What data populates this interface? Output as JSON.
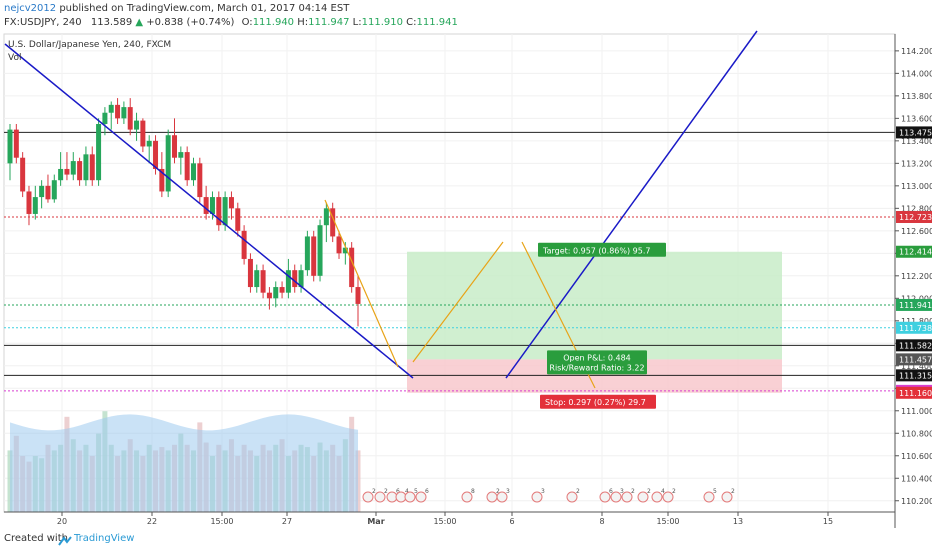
{
  "header": {
    "author": "nejcv2012",
    "published": "published on TradingView.com, March 01, 2017 04:14 EST",
    "symbol": "FX:USDJPY, 240",
    "last": "113.589",
    "change": "+0.838 (+0.74%)",
    "open_label": "O:",
    "open": "111.940",
    "high_label": "H:",
    "high": "111.947",
    "low_label": "L:",
    "low": "111.910",
    "close_label": "C:",
    "close": "111.941"
  },
  "legend": {
    "instrument": "U.S. Dollar/Japanese Yen, 240, FXCM",
    "volume": "Vol"
  },
  "colors": {
    "up": "#26a65b",
    "down": "#d9363e",
    "trendline": "#1a1ac7",
    "projection": "#e8a317",
    "target_zone": "#c8ecc8",
    "stop_zone": "#f8c8cc",
    "volume": "#9ecbee"
  },
  "chart_data": {
    "type": "candlestick",
    "instrument": "U.S. Dollar/Japanese Yen, 240, FXCM",
    "ylim": [
      110.1,
      114.35
    ],
    "y_ticks": [
      "114.200",
      "114.000",
      "113.800",
      "113.600",
      "113.400",
      "113.200",
      "113.000",
      "112.800",
      "112.600",
      "112.400",
      "112.200",
      "112.000",
      "111.800",
      "111.600",
      "111.400",
      "111.200",
      "111.000",
      "110.800",
      "110.600",
      "110.400",
      "110.200"
    ],
    "x_ticks": [
      "20",
      "22",
      "15:00",
      "27",
      "Mar",
      "15:00",
      "6",
      "8",
      "15:00",
      "13",
      "15"
    ],
    "candles": [
      [
        113.2,
        113.55,
        113.05,
        113.5
      ],
      [
        113.5,
        113.55,
        113.2,
        113.25
      ],
      [
        113.25,
        113.3,
        112.9,
        112.95
      ],
      [
        112.95,
        113.0,
        112.65,
        112.75
      ],
      [
        112.75,
        113.0,
        112.7,
        112.9
      ],
      [
        112.9,
        113.05,
        112.8,
        113.0
      ],
      [
        113.0,
        113.1,
        112.85,
        112.88
      ],
      [
        112.88,
        113.1,
        112.85,
        113.05
      ],
      [
        113.05,
        113.3,
        113.0,
        113.15
      ],
      [
        113.15,
        113.3,
        113.05,
        113.1
      ],
      [
        113.1,
        113.3,
        113.05,
        113.22
      ],
      [
        113.22,
        113.25,
        113.0,
        113.05
      ],
      [
        113.05,
        113.35,
        113.0,
        113.28
      ],
      [
        113.28,
        113.35,
        113.0,
        113.05
      ],
      [
        113.05,
        113.6,
        113.0,
        113.55
      ],
      [
        113.55,
        113.7,
        113.45,
        113.65
      ],
      [
        113.65,
        113.75,
        113.5,
        113.72
      ],
      [
        113.72,
        113.78,
        113.55,
        113.6
      ],
      [
        113.6,
        113.75,
        113.55,
        113.7
      ],
      [
        113.7,
        113.78,
        113.45,
        113.5
      ],
      [
        113.5,
        113.65,
        113.4,
        113.58
      ],
      [
        113.58,
        113.6,
        113.3,
        113.35
      ],
      [
        113.35,
        113.45,
        113.2,
        113.4
      ],
      [
        113.4,
        113.45,
        113.1,
        113.15
      ],
      [
        113.15,
        113.3,
        112.9,
        112.95
      ],
      [
        112.95,
        113.5,
        112.9,
        113.45
      ],
      [
        113.45,
        113.6,
        113.2,
        113.25
      ],
      [
        113.25,
        113.35,
        113.1,
        113.3
      ],
      [
        113.3,
        113.35,
        113.0,
        113.05
      ],
      [
        113.05,
        113.25,
        113.0,
        113.2
      ],
      [
        113.2,
        113.25,
        112.85,
        112.9
      ],
      [
        112.9,
        113.0,
        112.7,
        112.75
      ],
      [
        112.75,
        112.95,
        112.7,
        112.9
      ],
      [
        112.9,
        112.95,
        112.6,
        112.65
      ],
      [
        112.65,
        112.95,
        112.6,
        112.9
      ],
      [
        112.9,
        112.95,
        112.7,
        112.8
      ],
      [
        112.8,
        112.85,
        112.55,
        112.6
      ],
      [
        112.6,
        112.65,
        112.3,
        112.35
      ],
      [
        112.35,
        112.4,
        112.05,
        112.1
      ],
      [
        112.1,
        112.3,
        112.05,
        112.25
      ],
      [
        112.25,
        112.3,
        112.0,
        112.05
      ],
      [
        112.05,
        112.1,
        111.9,
        112.0
      ],
      [
        112.0,
        112.15,
        111.92,
        112.1
      ],
      [
        112.1,
        112.15,
        112.0,
        112.05
      ],
      [
        112.05,
        112.35,
        112.0,
        112.25
      ],
      [
        112.25,
        112.3,
        112.05,
        112.1
      ],
      [
        112.1,
        112.3,
        112.05,
        112.25
      ],
      [
        112.25,
        112.6,
        112.2,
        112.55
      ],
      [
        112.55,
        112.6,
        112.15,
        112.2
      ],
      [
        112.2,
        112.7,
        112.15,
        112.65
      ],
      [
        112.65,
        112.85,
        112.5,
        112.8
      ],
      [
        112.8,
        112.85,
        112.5,
        112.55
      ],
      [
        112.55,
        112.6,
        112.35,
        112.4
      ],
      [
        112.4,
        112.5,
        112.3,
        112.45
      ],
      [
        112.45,
        112.5,
        112.05,
        112.1
      ],
      [
        112.1,
        112.2,
        111.75,
        111.95
      ]
    ],
    "volumes": [
      0.55,
      0.68,
      0.5,
      0.45,
      0.5,
      0.48,
      0.6,
      0.55,
      0.6,
      0.85,
      0.65,
      0.55,
      0.6,
      0.5,
      0.7,
      0.9,
      0.6,
      0.5,
      0.55,
      0.65,
      0.55,
      0.5,
      0.6,
      0.55,
      0.58,
      0.55,
      0.6,
      0.7,
      0.6,
      0.55,
      0.8,
      0.62,
      0.5,
      0.6,
      0.55,
      0.65,
      0.5,
      0.6,
      0.55,
      0.5,
      0.6,
      0.55,
      0.6,
      0.65,
      0.5,
      0.55,
      0.6,
      0.58,
      0.5,
      0.62,
      0.55,
      0.6,
      0.5,
      0.65,
      0.85,
      0.55
    ],
    "horizontal_levels": [
      {
        "price": 113.475,
        "label": "113.475",
        "style": "solid-black"
      },
      {
        "price": 112.723,
        "label": "112.723",
        "style": "dotted-red"
      },
      {
        "price": 111.941,
        "label": "111.941",
        "style": "dotted-green"
      },
      {
        "price": 111.738,
        "label": "111.738",
        "style": "dotted-cyan"
      },
      {
        "price": 111.582,
        "label": "111.582",
        "style": "solid-black"
      },
      {
        "price": 111.315,
        "label": "111.315",
        "style": "solid-black"
      },
      {
        "price": 111.177,
        "label": "111.177",
        "style": "dotted-magenta"
      }
    ],
    "position": {
      "entry": 111.457,
      "target": 112.414,
      "stop": 111.16,
      "target_label": "Target: 0.957 (0.86%) 95.7",
      "pnl_label": "Open P&L: 0.484",
      "rr_label": "Risk/Reward Ratio: 3.22",
      "stop_label": "Stop: 0.297 (0.27%) 29.7",
      "target_price_label": "112.414",
      "entry_price_label": "111.457",
      "stop_price_label": "111.160"
    }
  },
  "event_icons": [
    "2",
    "2",
    "6",
    "4",
    "5",
    "6",
    "8",
    "2",
    "3",
    "3",
    "2",
    "6",
    "3",
    "2",
    "2",
    "4",
    "2",
    "5",
    "2"
  ],
  "footer": {
    "created": "Created with",
    "brand": "TradingView"
  }
}
